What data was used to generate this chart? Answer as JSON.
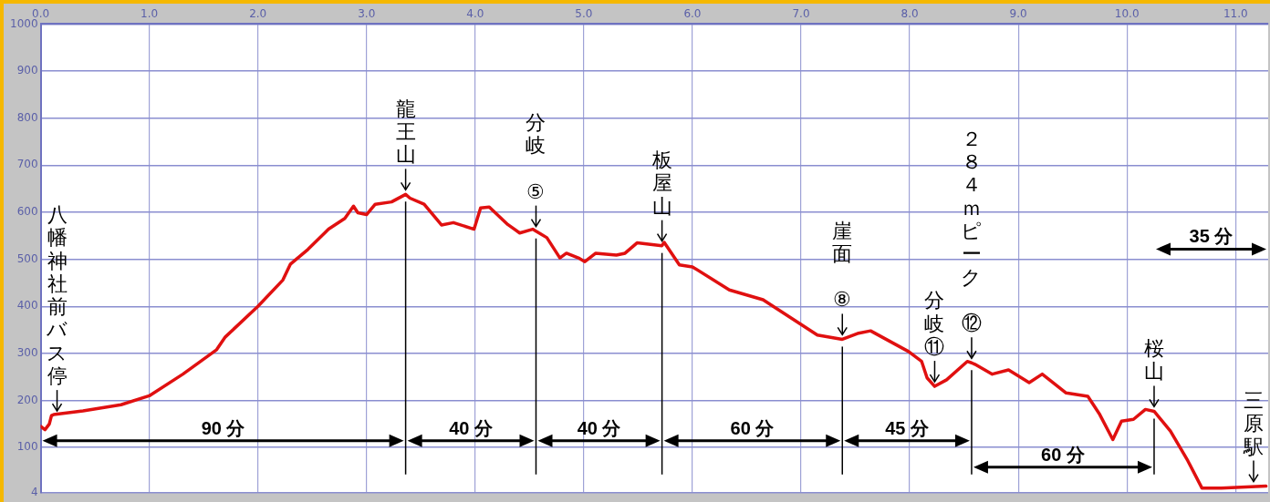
{
  "chart_data": {
    "type": "line",
    "x": [
      0,
      0.04,
      0.08,
      0.1,
      0.12,
      0.39,
      0.74,
      1.0,
      1.31,
      1.62,
      1.7,
      2.0,
      2.23,
      2.3,
      2.46,
      2.65,
      2.8,
      2.88,
      2.92,
      3.0,
      3.08,
      3.23,
      3.36,
      3.4,
      3.53,
      3.69,
      3.8,
      3.99,
      4.05,
      4.13,
      4.3,
      4.41,
      4.53,
      4.56,
      4.66,
      4.78,
      4.84,
      4.95,
      5.01,
      5.11,
      5.3,
      5.38,
      5.49,
      5.72,
      5.74,
      5.88,
      6.0,
      6.34,
      6.65,
      6.95,
      7.15,
      7.38,
      7.53,
      7.64,
      7.99,
      8.11,
      8.16,
      8.23,
      8.34,
      8.53,
      8.57,
      8.6,
      8.76,
      8.91,
      9.1,
      9.22,
      9.44,
      9.64,
      9.75,
      9.87,
      9.95,
      10.06,
      10.17,
      10.25,
      10.4,
      10.56,
      10.69,
      10.87,
      11.28
    ],
    "series": [
      {
        "color": "#e01010",
        "values": [
          145,
          138,
          150,
          168,
          170,
          178,
          191,
          210,
          256,
          308,
          335,
          400,
          456,
          490,
          521,
          564,
          587,
          613,
          599,
          595,
          617,
          622,
          638,
          630,
          617,
          573,
          578,
          564,
          609,
          611,
          574,
          556,
          564,
          560,
          546,
          503,
          513,
          503,
          495,
          513,
          509,
          513,
          535,
          529,
          536,
          488,
          484,
          435,
          414,
          369,
          339,
          330,
          343,
          348,
          304,
          283,
          248,
          230,
          244,
          283,
          280,
          277,
          256,
          265,
          238,
          256,
          216,
          209,
          170,
          117,
          156,
          160,
          181,
          177,
          135,
          72,
          14,
          14,
          18
        ]
      }
    ],
    "xlim": [
      0,
      11.3
    ],
    "xticks": [
      {
        "value": 0,
        "label": "0.0"
      },
      {
        "value": 1,
        "label": "1.0"
      },
      {
        "value": 2,
        "label": "2.0"
      },
      {
        "value": 3,
        "label": "3.0"
      },
      {
        "value": 4,
        "label": "4.0"
      },
      {
        "value": 5,
        "label": "5.0"
      },
      {
        "value": 6,
        "label": "6.0"
      },
      {
        "value": 7,
        "label": "7.0"
      },
      {
        "value": 8,
        "label": "8.0"
      },
      {
        "value": 9,
        "label": "9.0"
      },
      {
        "value": 10,
        "label": "10.0"
      },
      {
        "value": 11,
        "label": "11.0"
      }
    ],
    "ylim": [
      4,
      1000
    ],
    "yticks": [
      4,
      100,
      200,
      300,
      400,
      500,
      600,
      700,
      800,
      900,
      1000
    ],
    "grid": true,
    "legend": false,
    "marker": "none",
    "line_style": "solid",
    "ref_lines": [
      {
        "axis": "x",
        "value": 3.36,
        "color": "#000000"
      },
      {
        "axis": "x",
        "value": 4.56,
        "color": "#000000"
      },
      {
        "axis": "x",
        "value": 5.72,
        "color": "#000000"
      },
      {
        "axis": "x",
        "value": 7.38,
        "color": "#000000"
      },
      {
        "axis": "x",
        "value": 8.57,
        "color": "#000000"
      },
      {
        "axis": "x",
        "value": 10.25,
        "color": "#000000"
      }
    ],
    "annotations": [
      {
        "text": "八幡神社前バス停",
        "x": 0.1,
        "y": 168
      },
      {
        "text": "龍王山",
        "x": 3.36,
        "y": 638
      },
      {
        "text": "分岐 ⑤",
        "x": 4.56,
        "y": 560
      },
      {
        "text": "板屋山",
        "x": 5.72,
        "y": 529
      },
      {
        "text": "崖面 ⑧",
        "x": 7.38,
        "y": 330
      },
      {
        "text": "分岐⑪",
        "x": 8.23,
        "y": 230
      },
      {
        "text": "２８４ｍピーク ⑫",
        "x": 8.57,
        "y": 280
      },
      {
        "text": "桜山",
        "x": 10.25,
        "y": 177
      },
      {
        "text": "三原駅",
        "x": 11.28,
        "y": 18
      },
      "90 分",
      "40 分",
      "40 分",
      "60 分",
      "45 分",
      "60 分",
      "35 分"
    ]
  }
}
